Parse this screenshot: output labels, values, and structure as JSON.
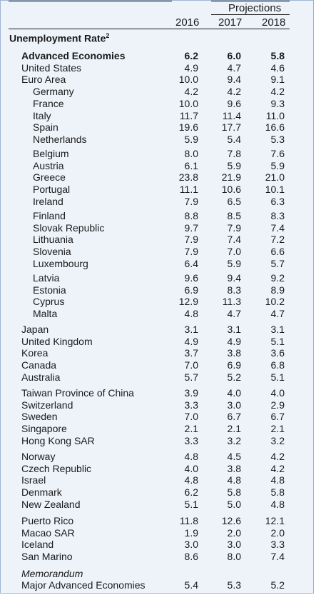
{
  "header": {
    "projections": "Projections",
    "years": [
      "2016",
      "2017",
      "2018"
    ]
  },
  "title": "Unemployment Rate",
  "title_footnote": "2",
  "groups": [
    {
      "rows": [
        {
          "label": "Advanced Economies",
          "values": [
            "6.2",
            "6.0",
            "5.8"
          ],
          "bold": true
        },
        {
          "label": "United States",
          "values": [
            "4.9",
            "4.7",
            "4.6"
          ]
        },
        {
          "label": "Euro Area",
          "values": [
            "10.0",
            "9.4",
            "9.1"
          ]
        },
        {
          "label": "Germany",
          "values": [
            "4.2",
            "4.2",
            "4.2"
          ],
          "indent": true
        },
        {
          "label": "France",
          "values": [
            "10.0",
            "9.6",
            "9.3"
          ],
          "indent": true
        },
        {
          "label": "Italy",
          "values": [
            "11.7",
            "11.4",
            "11.0"
          ],
          "indent": true
        },
        {
          "label": "Spain",
          "values": [
            "19.6",
            "17.7",
            "16.6"
          ],
          "indent": true
        },
        {
          "label": "Netherlands",
          "values": [
            "5.9",
            "5.4",
            "5.3"
          ],
          "indent": true
        }
      ]
    },
    {
      "rows": [
        {
          "label": "Belgium",
          "values": [
            "8.0",
            "7.8",
            "7.6"
          ],
          "indent": true
        },
        {
          "label": "Austria",
          "values": [
            "6.1",
            "5.9",
            "5.9"
          ],
          "indent": true
        },
        {
          "label": "Greece",
          "values": [
            "23.8",
            "21.9",
            "21.0"
          ],
          "indent": true
        },
        {
          "label": "Portugal",
          "values": [
            "11.1",
            "10.6",
            "10.1"
          ],
          "indent": true
        },
        {
          "label": "Ireland",
          "values": [
            "7.9",
            "6.5",
            "6.3"
          ],
          "indent": true
        }
      ]
    },
    {
      "rows": [
        {
          "label": "Finland",
          "values": [
            "8.8",
            "8.5",
            "8.3"
          ],
          "indent": true
        },
        {
          "label": "Slovak Republic",
          "values": [
            "9.7",
            "7.9",
            "7.4"
          ],
          "indent": true
        },
        {
          "label": "Lithuania",
          "values": [
            "7.9",
            "7.4",
            "7.2"
          ],
          "indent": true
        },
        {
          "label": "Slovenia",
          "values": [
            "7.9",
            "7.0",
            "6.6"
          ],
          "indent": true
        },
        {
          "label": "Luxembourg",
          "values": [
            "6.4",
            "5.9",
            "5.7"
          ],
          "indent": true
        }
      ]
    },
    {
      "rows": [
        {
          "label": "Latvia",
          "values": [
            "9.6",
            "9.4",
            "9.2"
          ],
          "indent": true
        },
        {
          "label": "Estonia",
          "values": [
            "6.9",
            "8.3",
            "8.9"
          ],
          "indent": true
        },
        {
          "label": "Cyprus",
          "values": [
            "12.9",
            "11.3",
            "10.2"
          ],
          "indent": true
        },
        {
          "label": "Malta",
          "values": [
            "4.8",
            "4.7",
            "4.7"
          ],
          "indent": true
        }
      ]
    },
    {
      "rows": [
        {
          "label": "Japan",
          "values": [
            "3.1",
            "3.1",
            "3.1"
          ]
        },
        {
          "label": "United Kingdom",
          "values": [
            "4.9",
            "4.9",
            "5.1"
          ]
        },
        {
          "label": "Korea",
          "values": [
            "3.7",
            "3.8",
            "3.6"
          ]
        },
        {
          "label": "Canada",
          "values": [
            "7.0",
            "6.9",
            "6.8"
          ]
        },
        {
          "label": "Australia",
          "values": [
            "5.7",
            "5.2",
            "5.1"
          ]
        }
      ]
    },
    {
      "rows": [
        {
          "label": "Taiwan Province of China",
          "values": [
            "3.9",
            "4.0",
            "4.0"
          ]
        },
        {
          "label": "Switzerland",
          "values": [
            "3.3",
            "3.0",
            "2.9"
          ]
        },
        {
          "label": "Sweden",
          "values": [
            "7.0",
            "6.7",
            "6.7"
          ]
        },
        {
          "label": "Singapore",
          "values": [
            "2.1",
            "2.1",
            "2.1"
          ]
        },
        {
          "label": "Hong Kong SAR",
          "values": [
            "3.3",
            "3.2",
            "3.2"
          ]
        }
      ]
    },
    {
      "rows": [
        {
          "label": "Norway",
          "values": [
            "4.8",
            "4.5",
            "4.2"
          ]
        },
        {
          "label": "Czech Republic",
          "values": [
            "4.0",
            "3.8",
            "4.2"
          ]
        },
        {
          "label": "Israel",
          "values": [
            "4.8",
            "4.8",
            "4.8"
          ]
        },
        {
          "label": "Denmark",
          "values": [
            "6.2",
            "5.8",
            "5.8"
          ]
        },
        {
          "label": "New Zealand",
          "values": [
            "5.1",
            "5.0",
            "4.8"
          ]
        }
      ]
    },
    {
      "rows": [
        {
          "label": "Puerto Rico",
          "values": [
            "11.8",
            "12.6",
            "12.1"
          ]
        },
        {
          "label": "Macao SAR",
          "values": [
            "1.9",
            "2.0",
            "2.0"
          ]
        },
        {
          "label": "Iceland",
          "values": [
            "3.0",
            "3.0",
            "3.3"
          ]
        },
        {
          "label": "San Marino",
          "values": [
            "8.6",
            "8.0",
            "7.4"
          ]
        }
      ]
    }
  ],
  "memorandum": {
    "label": "Memorandum",
    "row": {
      "label": "Major Advanced Economies",
      "values": [
        "5.4",
        "5.3",
        "5.2"
      ]
    }
  }
}
